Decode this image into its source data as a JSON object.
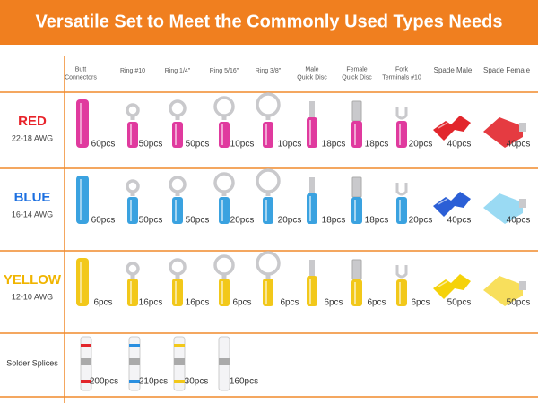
{
  "header": {
    "title": "Versatile Set to Meet the Commonly Used Types Needs"
  },
  "table": {
    "columns": [
      [
        "Butt",
        "Connectors"
      ],
      [
        "Ring #10"
      ],
      [
        "Ring 1/4\""
      ],
      [
        "Ring 5/16\""
      ],
      [
        "Ring 3/8\""
      ],
      [
        "Male",
        "Quick Disc"
      ],
      [
        "Female",
        "Quick Disc"
      ],
      [
        "Fork",
        "Terminals #10"
      ],
      [
        "Spade Male"
      ],
      [
        "Spade Female"
      ]
    ],
    "rows": [
      {
        "label": "RED",
        "gauge": "22-18 AWG",
        "quantities": [
          "60pcs",
          "50pcs",
          "50pcs",
          "10pcs",
          "10pcs",
          "18pcs",
          "18pcs",
          "20pcs",
          "40pcs",
          "40pcs"
        ]
      },
      {
        "label": "BLUE",
        "gauge": "16-14 AWG",
        "quantities": [
          "60pcs",
          "50pcs",
          "50pcs",
          "20pcs",
          "20pcs",
          "18pcs",
          "18pcs",
          "20pcs",
          "40pcs",
          "40pcs"
        ]
      },
      {
        "label": "YELLOW",
        "gauge": "12-10 AWG",
        "quantities": [
          "6pcs",
          "16pcs",
          "16pcs",
          "6pcs",
          "6pcs",
          "6pcs",
          "6pcs",
          "6pcs",
          "50pcs",
          "50pcs"
        ]
      },
      {
        "label": "Solder Splices",
        "quantities": [
          "200pcs",
          "210pcs",
          "30pcs",
          "160pcs"
        ]
      }
    ]
  }
}
